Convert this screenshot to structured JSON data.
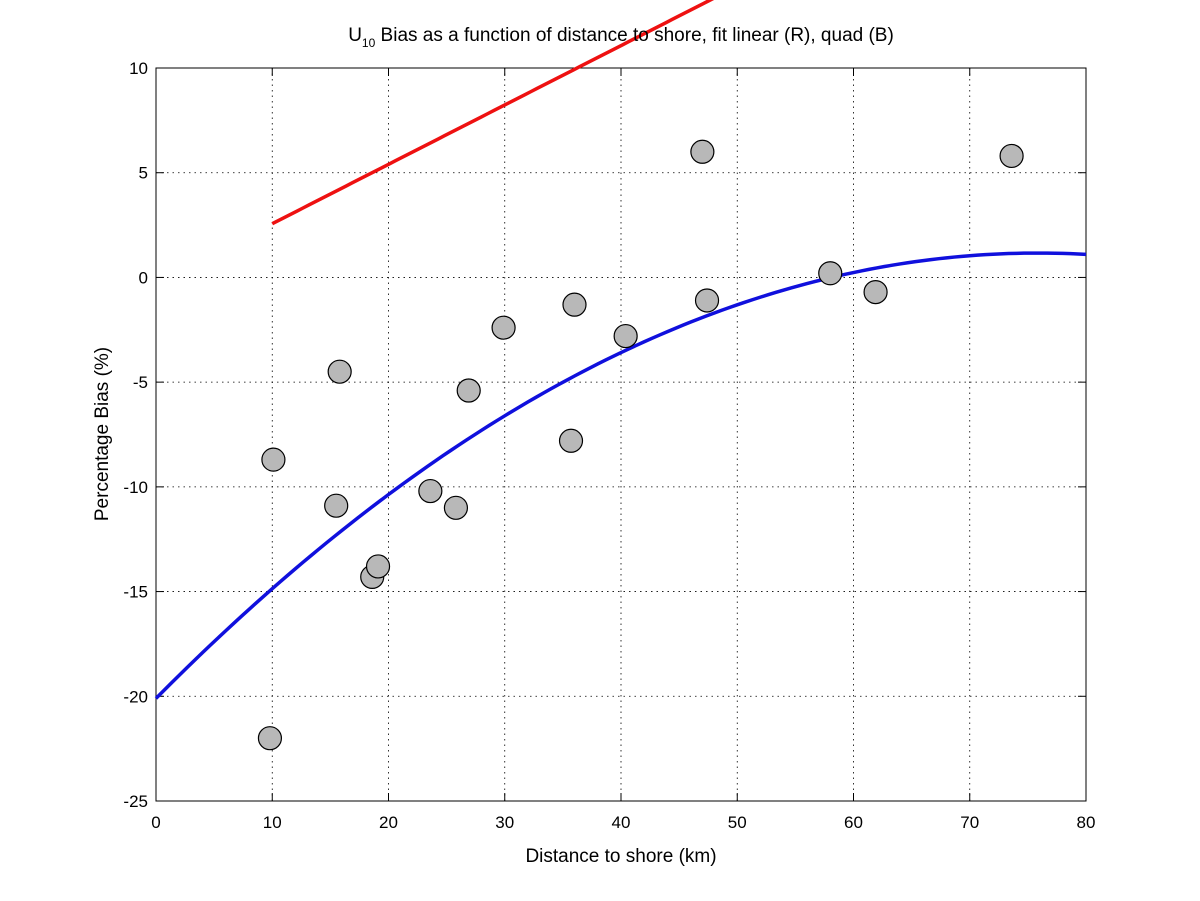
{
  "chart_data": {
    "type": "scatter",
    "title_main": "U",
    "title_sub": "10",
    "title_rest": " Bias as a function of distance to shore, fit linear (R), quad (B)",
    "xlabel": "Distance to shore (km)",
    "ylabel": "Percentage Bias (%)",
    "xlim": [
      0,
      80
    ],
    "ylim": [
      -25,
      10
    ],
    "xticks": [
      0,
      10,
      20,
      30,
      40,
      50,
      60,
      70,
      80
    ],
    "yticks": [
      -25,
      -20,
      -15,
      -10,
      -5,
      0,
      5,
      10
    ],
    "grid": true,
    "points": [
      {
        "x": 9.8,
        "y": -22.0
      },
      {
        "x": 10.1,
        "y": -8.7
      },
      {
        "x": 15.5,
        "y": -10.9
      },
      {
        "x": 15.8,
        "y": -4.5
      },
      {
        "x": 18.6,
        "y": -14.3
      },
      {
        "x": 19.1,
        "y": -13.8
      },
      {
        "x": 23.6,
        "y": -10.2
      },
      {
        "x": 25.8,
        "y": -11.0
      },
      {
        "x": 26.9,
        "y": -5.4
      },
      {
        "x": 29.9,
        "y": -2.4
      },
      {
        "x": 35.7,
        "y": -7.8
      },
      {
        "x": 36.0,
        "y": -1.3
      },
      {
        "x": 40.4,
        "y": -2.8
      },
      {
        "x": 47.0,
        "y": 6.0
      },
      {
        "x": 47.4,
        "y": -1.1
      },
      {
        "x": 58.0,
        "y": 0.2
      },
      {
        "x": 61.9,
        "y": -0.7
      },
      {
        "x": 73.6,
        "y": 5.8
      }
    ],
    "fits": [
      {
        "type": "linear",
        "color": "#ee1111",
        "x_range": [
          10,
          73.5
        ],
        "coeffs": [
          -0.27,
          0.2835
        ]
      },
      {
        "type": "quadratic",
        "color": "#1010dd",
        "x_range": [
          0,
          80
        ],
        "coeffs": [
          -20.1,
          0.5606,
          -0.003695
        ]
      }
    ],
    "point_color": "#b8b8b8"
  }
}
